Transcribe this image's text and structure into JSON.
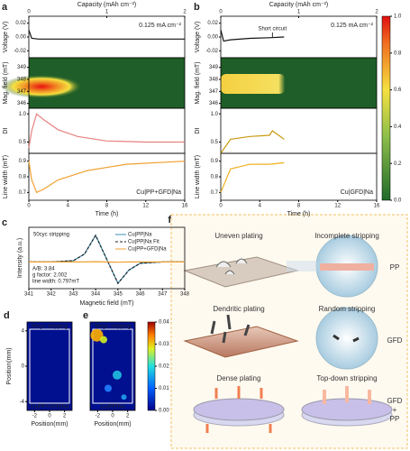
{
  "panels": {
    "a": {
      "label": "a",
      "xlabel": "Time (h)",
      "xlim": [
        0,
        16
      ],
      "xticks": [
        0,
        4,
        8,
        12,
        16
      ],
      "top_axis": {
        "label": "Capacity (mAh cm⁻²)",
        "xlim": [
          0,
          2
        ],
        "xticks": [
          0,
          1,
          2
        ]
      },
      "annotation": "0.125 mA cm⁻²",
      "sample": "Cu|PP+GFD|Na",
      "subplots": [
        {
          "type": "line",
          "ylabel": "Voltage (V)",
          "ylim": [
            -0.03,
            0.03
          ],
          "yticks": [
            0.02,
            {
              "value": 0,
              "label": "0.00"
            },
            -0.02
          ],
          "series": [
            {
              "color": "#111111",
              "x": [
                0,
                0.3,
                1,
                2,
                4,
                8,
                12,
                16
              ],
              "values": [
                0.01,
                -0.002,
                -0.003,
                -0.003,
                -0.003,
                -0.003,
                -0.003,
                -0.003
              ]
            }
          ]
        },
        {
          "type": "heatmap",
          "ylabel": "Mag. field (mT)",
          "ylim": [
            345.6,
            349.8
          ],
          "yticks": [
            346,
            347,
            348,
            349
          ]
        },
        {
          "type": "line",
          "ylabel": "DI",
          "ylim": [
            0.3,
            1.1
          ],
          "yticks": [
            {
              "value": 1,
              "label": "1.0"
            },
            0.5
          ],
          "series": [
            {
              "color": "#e88080",
              "x": [
                0,
                0.3,
                0.8,
                1.5,
                3,
                5,
                8,
                12,
                16
              ],
              "values": [
                0.4,
                0.7,
                1.0,
                0.9,
                0.72,
                0.6,
                0.52,
                0.5,
                0.5
              ]
            }
          ]
        },
        {
          "type": "line",
          "ylabel": "Line width (mT)",
          "ylim": [
            0.65,
            0.95
          ],
          "yticks": [
            0.9,
            0.8,
            0.7
          ],
          "series": [
            {
              "color": "#f0a030",
              "x": [
                0,
                0.3,
                0.8,
                1.5,
                3,
                6,
                10,
                16
              ],
              "values": [
                0.9,
                0.78,
                0.7,
                0.72,
                0.78,
                0.84,
                0.88,
                0.9
              ]
            }
          ]
        }
      ]
    },
    "b": {
      "label": "b",
      "xlabel": "Time (h)",
      "xlim": [
        0,
        16
      ],
      "xticks": [
        0,
        4,
        8,
        12,
        16
      ],
      "top_axis": {
        "label": "Capacity (mAh cm⁻²)",
        "xlim": [
          0,
          2
        ],
        "xticks": [
          0,
          1,
          2
        ]
      },
      "annotation": "0.125 mA cm⁻²",
      "sample": "Cu|GFD|Na",
      "callout": "Short circuit",
      "subplots": [
        {
          "type": "line",
          "ylabel": "Voltage (V)",
          "ylim": [
            -0.03,
            0.03
          ],
          "yticks": [
            0.02,
            {
              "value": 0,
              "label": "0.00"
            },
            -0.02
          ],
          "series": [
            {
              "color": "#111111",
              "x": [
                0,
                0.3,
                1,
                3,
                5,
                6.5
              ],
              "values": [
                0.01,
                -0.006,
                -0.004,
                -0.002,
                -0.001,
                0.0
              ]
            }
          ]
        },
        {
          "type": "heatmap",
          "ylabel": "Mag. field (mT)",
          "ylim": [
            345.6,
            349.8
          ],
          "yticks": [
            346,
            347,
            348,
            349
          ]
        },
        {
          "type": "line",
          "ylabel": "DI",
          "ylim": [
            0.3,
            1.1
          ],
          "yticks": [
            {
              "value": 1,
              "label": "1.0"
            },
            0.5
          ],
          "series": [
            {
              "color": "#c89a10",
              "x": [
                0,
                1,
                3,
                5,
                5.3,
                6.5
              ],
              "values": [
                0.3,
                0.55,
                0.6,
                0.62,
                0.7,
                0.55
              ]
            }
          ]
        },
        {
          "type": "line",
          "ylabel": "Line width (mT)",
          "ylim": [
            0.65,
            0.95
          ],
          "yticks": [
            0.9,
            0.8,
            0.7
          ],
          "series": [
            {
              "color": "#f0b020",
              "x": [
                0,
                1,
                3,
                5,
                6.5
              ],
              "values": [
                0.7,
                0.85,
                0.88,
                0.88,
                0.89
              ]
            }
          ]
        }
      ],
      "colorbar": {
        "ylim": [
          0,
          1
        ],
        "yticks": [
          {
            "value": 0,
            "label": "0.0"
          },
          0.2,
          0.4,
          0.6,
          0.8,
          {
            "value": 1,
            "label": "1.0"
          }
        ]
      }
    },
    "c": {
      "label": "c",
      "type": "line",
      "title": "50cyc stripping",
      "xlabel": "Magnetic field (mT)",
      "ylabel": "Intensity (a.u.)",
      "xlim": [
        341,
        348
      ],
      "xticks": [
        341,
        342,
        343,
        344,
        345,
        346,
        347,
        348
      ],
      "ylim": [
        -1,
        1.3
      ],
      "x": [
        341,
        342,
        343,
        343.5,
        344,
        344.5,
        345,
        345.5,
        346,
        347,
        348
      ],
      "series": [
        {
          "name": "Cu|PP|Na",
          "color": "#3a8fb7",
          "dash": false,
          "values": [
            0,
            0,
            0.05,
            0.3,
            1.0,
            0.1,
            -0.8,
            -0.3,
            -0.05,
            0,
            0
          ]
        },
        {
          "name": "Cu|PP|Na Fit",
          "color": "#222222",
          "dash": true,
          "values": [
            0,
            0,
            0.05,
            0.3,
            1.0,
            0.1,
            -0.8,
            -0.3,
            -0.05,
            0,
            0
          ]
        },
        {
          "name": "Cu|PP+GFD|Na",
          "color": "#f0a030",
          "dash": false,
          "values": [
            0,
            0,
            0,
            0,
            0.01,
            0,
            -0.01,
            0,
            0,
            0,
            0
          ]
        }
      ],
      "annotations": [
        "A/B: 3.84",
        "g factor: 2.002",
        "line width: 0.797mT"
      ]
    },
    "d": {
      "label": "d",
      "title": "50cyc stripping",
      "sample": "Cu|PP+GFD|Na",
      "xlabel": "Position(mm)",
      "ylabel": "Position(mm)",
      "xlim": [
        -3,
        3
      ],
      "xticks": [
        -2,
        0,
        2
      ],
      "ylim": [
        -5,
        5
      ],
      "yticks": [
        -4,
        0,
        4
      ]
    },
    "e": {
      "label": "e",
      "title": "50cyc stripping",
      "sample": "Cu|PP|Na",
      "xlabel": "Position(mm)",
      "xlim": [
        -3,
        3
      ],
      "xticks": [
        -2,
        0,
        2
      ],
      "colorbar": {
        "ylim": [
          0,
          0.04
        ],
        "yticks": [
          {
            "value": 0,
            "label": "0.00"
          },
          0.01,
          0.02,
          0.03,
          0.04
        ]
      }
    },
    "f": {
      "label": "f",
      "rows": [
        {
          "left": "Uneven plating",
          "right": "Incomplete stripping",
          "side": [
            "PP"
          ]
        },
        {
          "left": "Dendritic plating",
          "right": "Random stripping",
          "side": [
            "GFD"
          ]
        },
        {
          "left": "Dense plating",
          "right": "Top-down stripping",
          "side": [
            "GFD",
            "+",
            "PP"
          ]
        }
      ]
    }
  }
}
